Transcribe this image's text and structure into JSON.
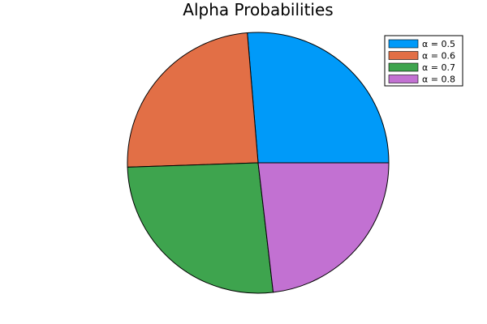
{
  "chart_data": {
    "type": "pie",
    "title": "Alpha Probabilities",
    "legend_position": "top-right",
    "grid": false,
    "slices": [
      {
        "label": "α = 0.5",
        "value": 0.5,
        "color": "#009af9"
      },
      {
        "label": "α = 0.6",
        "value": 0.46,
        "color": "#e26f46"
      },
      {
        "label": "α = 0.7",
        "value": 0.5,
        "color": "#3ea44e"
      },
      {
        "label": "α = 0.8",
        "value": 0.44,
        "color": "#c271d2"
      }
    ]
  }
}
